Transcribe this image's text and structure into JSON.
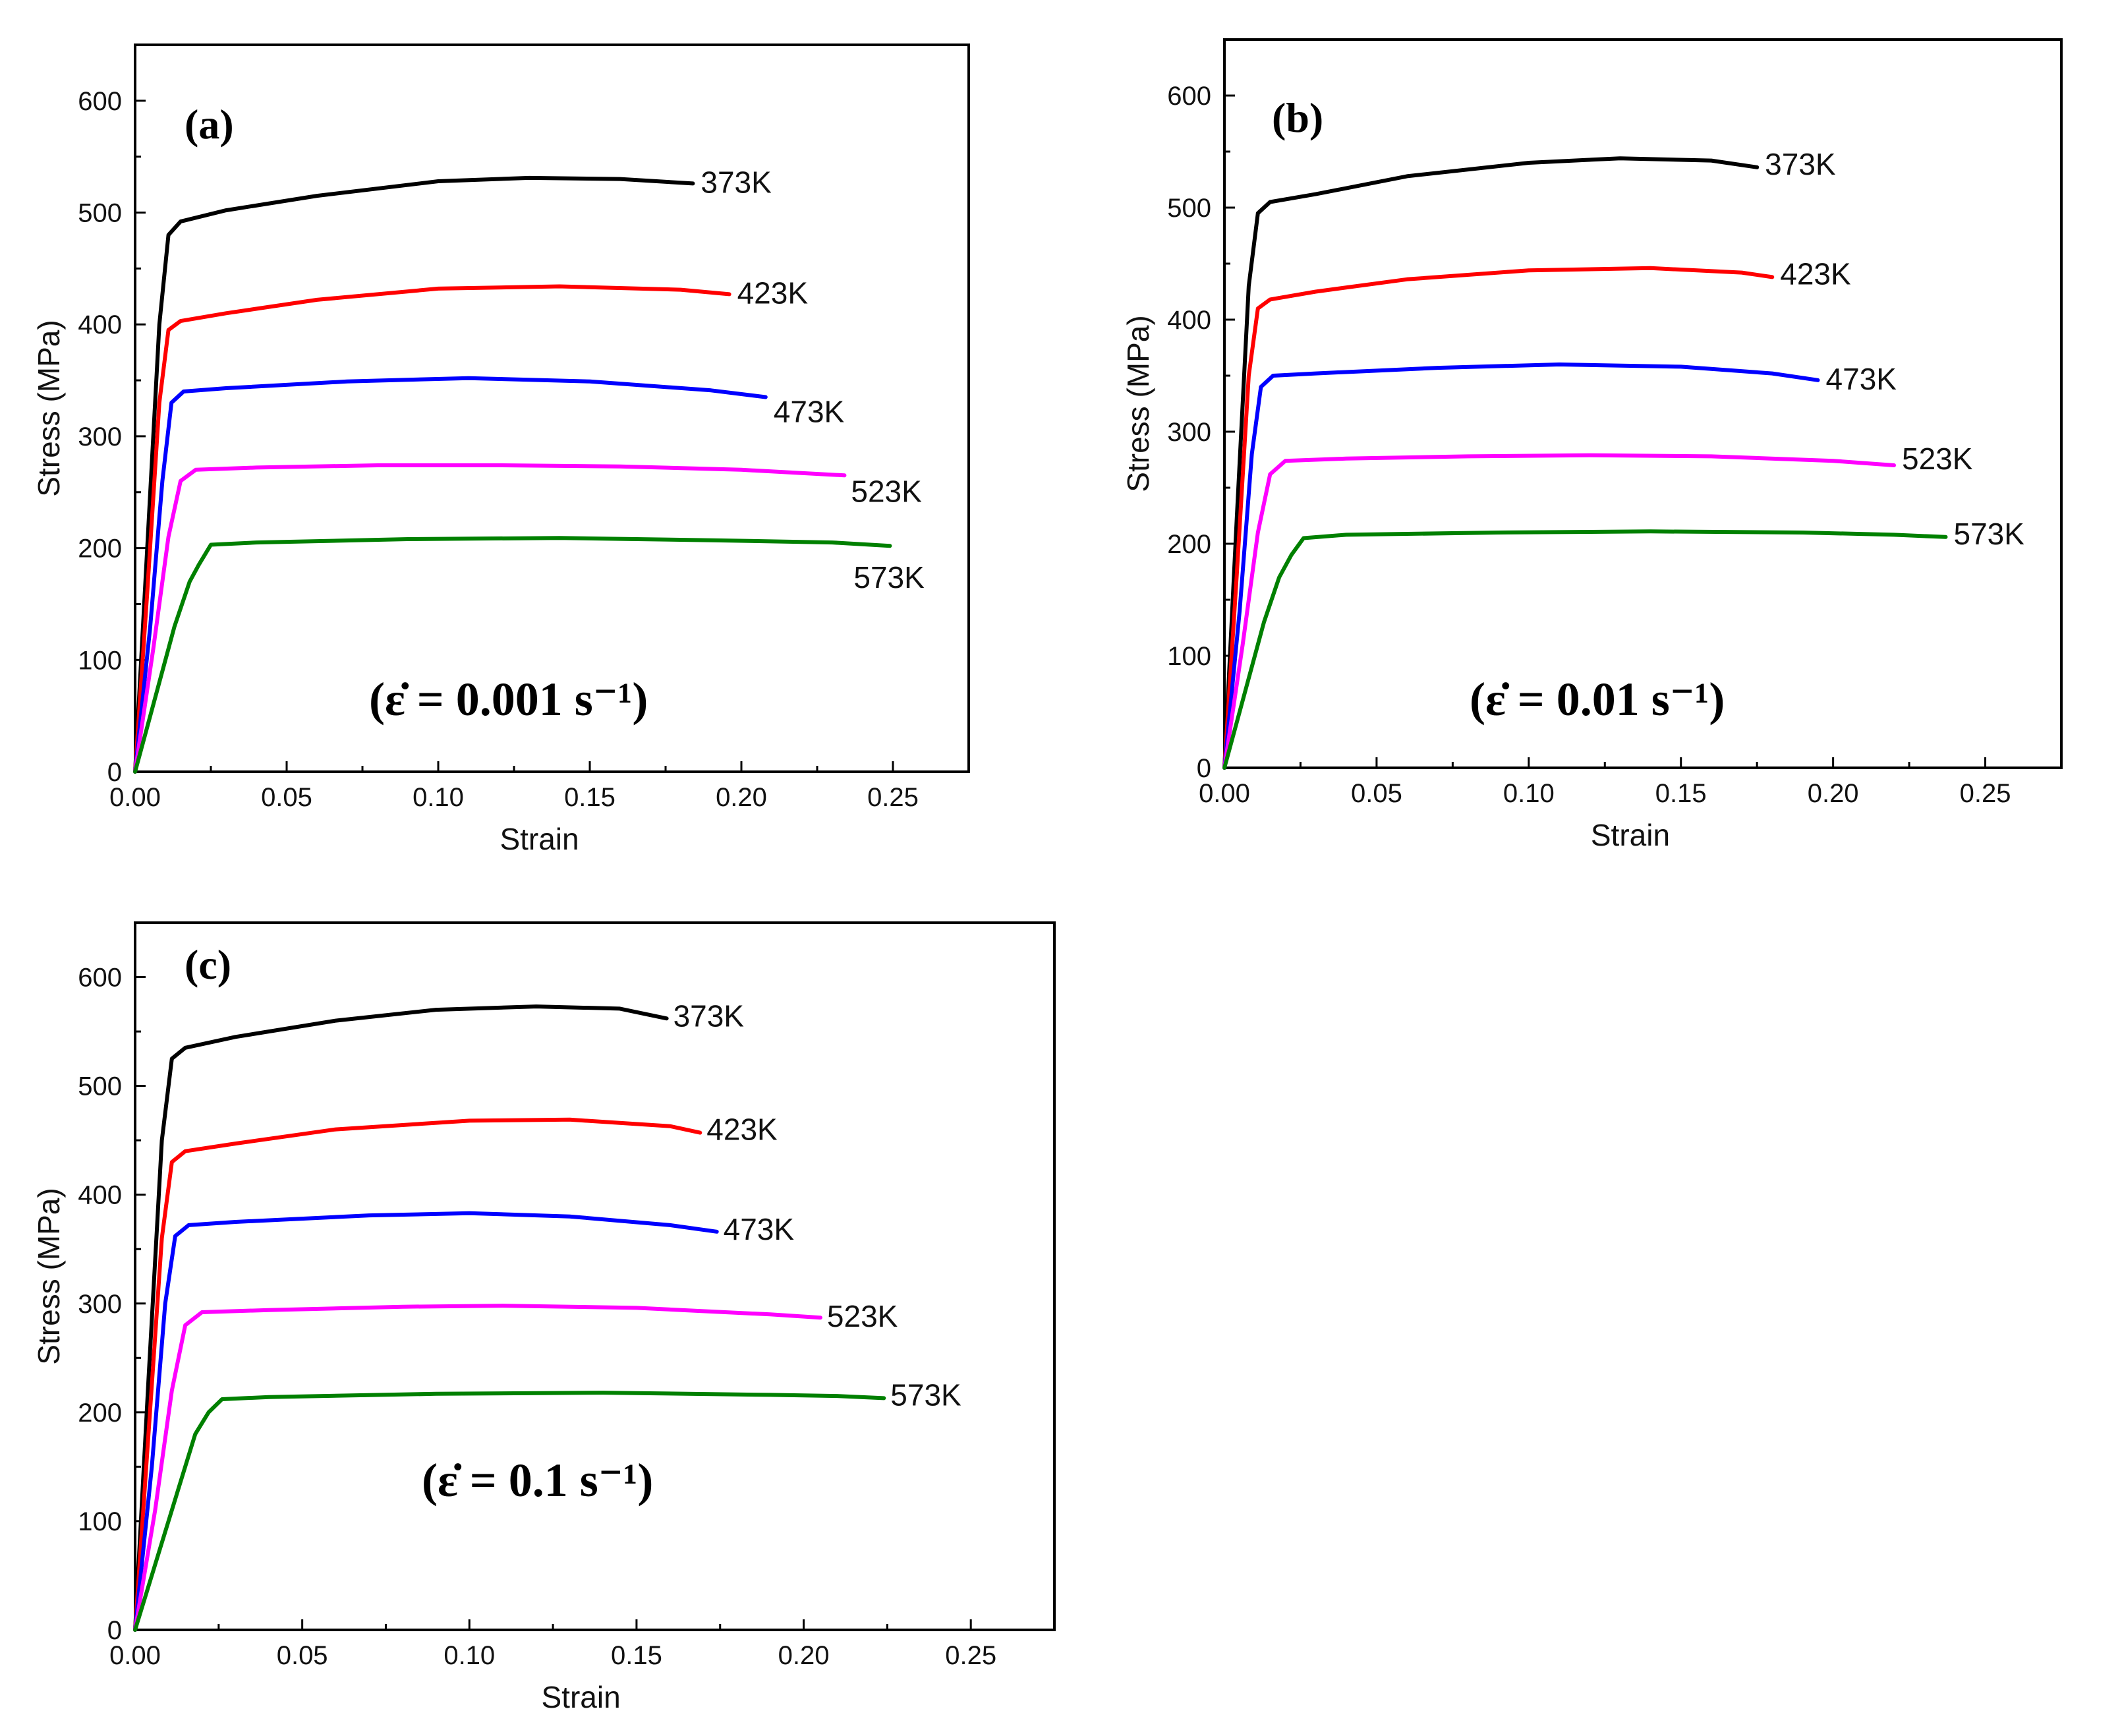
{
  "chart_data": [
    {
      "type": "line",
      "panel": "(a)",
      "rate": "(ε̇ = 0.001  s⁻¹)",
      "xlabel": "Strain",
      "ylabel": "Stress (MPa)",
      "xlim": [
        0,
        0.275
      ],
      "ylim": [
        0,
        650
      ],
      "xticks": [
        "0.00",
        "0.05",
        "0.10",
        "0.15",
        "0.20",
        "0.25"
      ],
      "yticks": [
        "0",
        "100",
        "200",
        "300",
        "400",
        "500",
        "600"
      ],
      "series": [
        {
          "name": "373K",
          "color": "#000000",
          "points": [
            [
              0,
              0
            ],
            [
              0.004,
              200
            ],
            [
              0.008,
              400
            ],
            [
              0.011,
              480
            ],
            [
              0.015,
              492
            ],
            [
              0.03,
              502
            ],
            [
              0.06,
              515
            ],
            [
              0.1,
              528
            ],
            [
              0.13,
              531
            ],
            [
              0.16,
              530
            ],
            [
              0.184,
              526
            ]
          ]
        },
        {
          "name": "423K",
          "color": "#ff0000",
          "points": [
            [
              0,
              0
            ],
            [
              0.004,
              160
            ],
            [
              0.008,
              330
            ],
            [
              0.011,
              395
            ],
            [
              0.015,
              403
            ],
            [
              0.03,
              410
            ],
            [
              0.06,
              422
            ],
            [
              0.1,
              432
            ],
            [
              0.14,
              434
            ],
            [
              0.18,
              431
            ],
            [
              0.196,
              427
            ]
          ]
        },
        {
          "name": "473K",
          "color": "#0000ff",
          "points": [
            [
              0,
              0
            ],
            [
              0.005,
              130
            ],
            [
              0.009,
              260
            ],
            [
              0.012,
              330
            ],
            [
              0.016,
              340
            ],
            [
              0.03,
              343
            ],
            [
              0.07,
              349
            ],
            [
              0.11,
              352
            ],
            [
              0.15,
              349
            ],
            [
              0.19,
              341
            ],
            [
              0.208,
              335
            ]
          ]
        },
        {
          "name": "523K",
          "color": "#ff00ff",
          "points": [
            [
              0,
              0
            ],
            [
              0.006,
              110
            ],
            [
              0.011,
              210
            ],
            [
              0.015,
              260
            ],
            [
              0.02,
              270
            ],
            [
              0.04,
              272
            ],
            [
              0.08,
              274
            ],
            [
              0.12,
              274
            ],
            [
              0.16,
              273
            ],
            [
              0.2,
              270
            ],
            [
              0.234,
              265
            ]
          ]
        },
        {
          "name": "573K",
          "color": "#008000",
          "points": [
            [
              0,
              0
            ],
            [
              0.007,
              70
            ],
            [
              0.013,
              130
            ],
            [
              0.018,
              170
            ],
            [
              0.021,
              185
            ],
            [
              0.025,
              203
            ],
            [
              0.04,
              205
            ],
            [
              0.09,
              208
            ],
            [
              0.14,
              209
            ],
            [
              0.19,
              207
            ],
            [
              0.23,
              205
            ],
            [
              0.249,
              202
            ]
          ]
        }
      ]
    },
    {
      "type": "line",
      "panel": "(b)",
      "rate": "(ε̇ = 0.01  s⁻¹)",
      "xlabel": "Strain",
      "ylabel": "Stress (MPa)",
      "xlim": [
        0,
        0.275
      ],
      "ylim": [
        0,
        650
      ],
      "xticks": [
        "0.00",
        "0.05",
        "0.10",
        "0.15",
        "0.20",
        "0.25"
      ],
      "yticks": [
        "0",
        "100",
        "200",
        "300",
        "400",
        "500",
        "600"
      ],
      "series": [
        {
          "name": "373K",
          "color": "#000000",
          "points": [
            [
              0,
              0
            ],
            [
              0.004,
              220
            ],
            [
              0.008,
              430
            ],
            [
              0.011,
              495
            ],
            [
              0.015,
              505
            ],
            [
              0.03,
              512
            ],
            [
              0.06,
              528
            ],
            [
              0.1,
              540
            ],
            [
              0.13,
              544
            ],
            [
              0.16,
              542
            ],
            [
              0.175,
              536
            ]
          ]
        },
        {
          "name": "423K",
          "color": "#ff0000",
          "points": [
            [
              0,
              0
            ],
            [
              0.004,
              170
            ],
            [
              0.008,
              350
            ],
            [
              0.011,
              410
            ],
            [
              0.015,
              418
            ],
            [
              0.03,
              425
            ],
            [
              0.06,
              436
            ],
            [
              0.1,
              444
            ],
            [
              0.14,
              446
            ],
            [
              0.17,
              442
            ],
            [
              0.18,
              438
            ]
          ]
        },
        {
          "name": "473K",
          "color": "#0000ff",
          "points": [
            [
              0,
              0
            ],
            [
              0.005,
              140
            ],
            [
              0.009,
              280
            ],
            [
              0.012,
              340
            ],
            [
              0.016,
              350
            ],
            [
              0.03,
              352
            ],
            [
              0.07,
              357
            ],
            [
              0.11,
              360
            ],
            [
              0.15,
              358
            ],
            [
              0.18,
              352
            ],
            [
              0.195,
              346
            ]
          ]
        },
        {
          "name": "523K",
          "color": "#ff00ff",
          "points": [
            [
              0,
              0
            ],
            [
              0.006,
              110
            ],
            [
              0.011,
              210
            ],
            [
              0.015,
              262
            ],
            [
              0.02,
              274
            ],
            [
              0.04,
              276
            ],
            [
              0.08,
              278
            ],
            [
              0.12,
              279
            ],
            [
              0.16,
              278
            ],
            [
              0.2,
              274
            ],
            [
              0.22,
              270
            ]
          ]
        },
        {
          "name": "573K",
          "color": "#008000",
          "points": [
            [
              0,
              0
            ],
            [
              0.007,
              70
            ],
            [
              0.013,
              130
            ],
            [
              0.018,
              170
            ],
            [
              0.022,
              190
            ],
            [
              0.026,
              205
            ],
            [
              0.04,
              208
            ],
            [
              0.09,
              210
            ],
            [
              0.14,
              211
            ],
            [
              0.19,
              210
            ],
            [
              0.22,
              208
            ],
            [
              0.237,
              206
            ]
          ]
        }
      ]
    },
    {
      "type": "line",
      "panel": "(c)",
      "rate": "(ε̇ = 0.1  s⁻¹)",
      "xlabel": "Strain",
      "ylabel": "Stress (MPa)",
      "xlim": [
        0,
        0.275
      ],
      "ylim": [
        0,
        650
      ],
      "xticks": [
        "0.00",
        "0.05",
        "0.10",
        "0.15",
        "0.20",
        "0.25"
      ],
      "yticks": [
        "0",
        "100",
        "200",
        "300",
        "400",
        "500",
        "600"
      ],
      "series": [
        {
          "name": "373K",
          "color": "#000000",
          "points": [
            [
              0,
              0
            ],
            [
              0.004,
              230
            ],
            [
              0.008,
              450
            ],
            [
              0.011,
              525
            ],
            [
              0.015,
              535
            ],
            [
              0.03,
              545
            ],
            [
              0.06,
              560
            ],
            [
              0.09,
              570
            ],
            [
              0.12,
              573
            ],
            [
              0.145,
              571
            ],
            [
              0.159,
              562
            ]
          ]
        },
        {
          "name": "423K",
          "color": "#ff0000",
          "points": [
            [
              0,
              0
            ],
            [
              0.004,
              180
            ],
            [
              0.008,
              360
            ],
            [
              0.011,
              430
            ],
            [
              0.015,
              440
            ],
            [
              0.03,
              447
            ],
            [
              0.06,
              460
            ],
            [
              0.1,
              468
            ],
            [
              0.13,
              469
            ],
            [
              0.16,
              463
            ],
            [
              0.169,
              457
            ]
          ]
        },
        {
          "name": "473K",
          "color": "#0000ff",
          "points": [
            [
              0,
              0
            ],
            [
              0.005,
              150
            ],
            [
              0.009,
              300
            ],
            [
              0.012,
              362
            ],
            [
              0.016,
              372
            ],
            [
              0.03,
              375
            ],
            [
              0.07,
              381
            ],
            [
              0.1,
              383
            ],
            [
              0.13,
              380
            ],
            [
              0.16,
              372
            ],
            [
              0.174,
              366
            ]
          ]
        },
        {
          "name": "523K",
          "color": "#ff00ff",
          "points": [
            [
              0,
              0
            ],
            [
              0.006,
              110
            ],
            [
              0.011,
              220
            ],
            [
              0.015,
              280
            ],
            [
              0.02,
              292
            ],
            [
              0.04,
              294
            ],
            [
              0.08,
              297
            ],
            [
              0.11,
              298
            ],
            [
              0.15,
              296
            ],
            [
              0.19,
              290
            ],
            [
              0.205,
              287
            ]
          ]
        },
        {
          "name": "573K",
          "color": "#008000",
          "points": [
            [
              0,
              0
            ],
            [
              0.007,
              70
            ],
            [
              0.013,
              130
            ],
            [
              0.018,
              180
            ],
            [
              0.022,
              200
            ],
            [
              0.026,
              212
            ],
            [
              0.04,
              214
            ],
            [
              0.09,
              217
            ],
            [
              0.14,
              218
            ],
            [
              0.19,
              216
            ],
            [
              0.21,
              215
            ],
            [
              0.224,
              213
            ]
          ]
        }
      ]
    }
  ]
}
